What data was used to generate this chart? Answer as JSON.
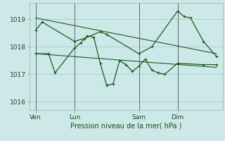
{
  "background_color": "#cce8e8",
  "grid_color": "#aacccc",
  "line_color": "#1a5c1a",
  "xlabel": "Pression niveau de la mer( hPa )",
  "ylim": [
    1015.7,
    1019.6
  ],
  "yticks": [
    1016,
    1017,
    1018,
    1019
  ],
  "xtick_labels": [
    "Ven",
    "Lun",
    "Sam",
    "Dim"
  ],
  "xtick_positions": [
    0,
    24,
    64,
    88
  ],
  "xlim": [
    -4,
    116
  ],
  "vlines": [
    0,
    24,
    64,
    88
  ],
  "series1_x": [
    0,
    4,
    24,
    30,
    40,
    44,
    64,
    72,
    88,
    92,
    96,
    104,
    112
  ],
  "series1_y": [
    1018.6,
    1018.9,
    1018.2,
    1018.3,
    1018.55,
    1018.45,
    1017.75,
    1018.0,
    1019.3,
    1019.1,
    1019.05,
    1018.2,
    1017.65
  ],
  "series2_x": [
    0,
    8,
    12,
    24,
    28,
    32,
    36,
    40,
    44,
    48,
    52,
    56,
    60,
    64,
    68,
    72,
    76,
    80,
    88,
    104,
    112
  ],
  "series2_y": [
    1017.75,
    1017.75,
    1017.05,
    1017.95,
    1018.15,
    1018.4,
    1018.35,
    1017.4,
    1016.6,
    1016.65,
    1017.5,
    1017.35,
    1017.1,
    1017.3,
    1017.55,
    1017.15,
    1017.05,
    1017.0,
    1017.4,
    1017.35,
    1017.35
  ],
  "trendline1_x": [
    0,
    112
  ],
  "trendline1_y": [
    1019.05,
    1017.75
  ],
  "trendline2_x": [
    0,
    112
  ],
  "trendline2_y": [
    1017.75,
    1017.25
  ],
  "figsize": [
    3.2,
    2.0
  ],
  "dpi": 100
}
